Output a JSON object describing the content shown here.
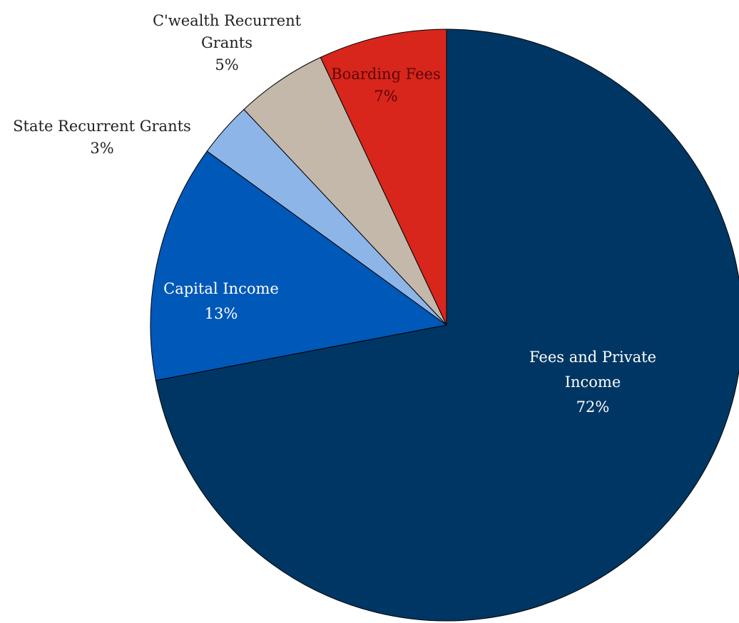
{
  "chart_data": {
    "type": "pie",
    "title": "",
    "slices": [
      {
        "name": "Fees and Private Income",
        "value": 72,
        "label_lines": [
          "Fees and Private",
          "Income"
        ],
        "pct_label": "72%",
        "color": "#003663",
        "label_color": "#ffffff"
      },
      {
        "name": "Capital Income",
        "value": 13,
        "label_lines": [
          "Capital Income"
        ],
        "pct_label": "13%",
        "color": "#0058b8",
        "label_color": "#ffffff"
      },
      {
        "name": "State Recurrent Grants",
        "value": 3,
        "label_lines": [
          "State Recurrent Grants"
        ],
        "pct_label": "3%",
        "color": "#8db5e8",
        "label_color": "#222222"
      },
      {
        "name": "C'wealth Recurrent Grants",
        "value": 5,
        "label_lines": [
          "C'wealth Recurrent",
          "Grants"
        ],
        "pct_label": "5%",
        "color": "#c4b8ab",
        "label_color": "#222222"
      },
      {
        "name": "Boarding Fees",
        "value": 7,
        "label_lines": [
          "Boarding Fees"
        ],
        "pct_label": "7%",
        "color": "#d8261d",
        "label_color": "#5a0505"
      }
    ],
    "legend": "none",
    "start_angle": "12 o'clock",
    "direction": "clockwise"
  }
}
